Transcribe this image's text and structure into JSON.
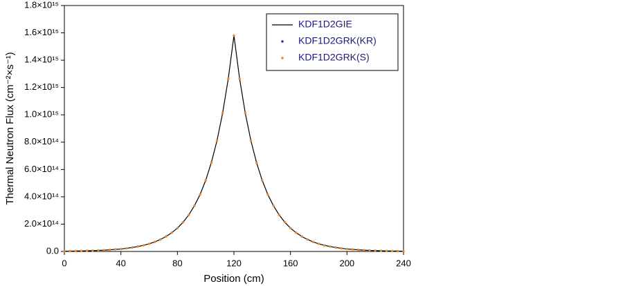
{
  "chart_data": {
    "type": "line",
    "xlabel": "Position (cm)",
    "ylabel": "Thermal Neutron Flux (cm⁻²×s⁻¹)",
    "xlim": [
      0,
      240
    ],
    "ylim": [
      0,
      1800000000000000.0
    ],
    "xticks": [
      0,
      40,
      80,
      120,
      160,
      200,
      240
    ],
    "yticks": [
      {
        "value": 0,
        "label": "0.0"
      },
      {
        "value": 200000000000000.0,
        "label": "2.0×10¹⁴"
      },
      {
        "value": 400000000000000.0,
        "label": "4.0×10¹⁴"
      },
      {
        "value": 600000000000000.0,
        "label": "6.0×10¹⁴"
      },
      {
        "value": 800000000000000.0,
        "label": "8.0×10¹⁴"
      },
      {
        "value": 1000000000000000.0,
        "label": "1.0×10¹⁵"
      },
      {
        "value": 1200000000000000.0,
        "label": "1.2×10¹⁵"
      },
      {
        "value": 1400000000000000.0,
        "label": "1.4×10¹⁵"
      },
      {
        "value": 1600000000000000.0,
        "label": "1.6×10¹⁵"
      },
      {
        "value": 1800000000000000.0,
        "label": "1.8×10¹⁵"
      }
    ],
    "legend": "upper right",
    "x": [
      0,
      4,
      8,
      12,
      16,
      20,
      24,
      28,
      32,
      36,
      40,
      44,
      48,
      52,
      56,
      60,
      64,
      68,
      72,
      76,
      80,
      84,
      88,
      92,
      96,
      100,
      104,
      108,
      112,
      116,
      120,
      124,
      128,
      132,
      136,
      140,
      144,
      148,
      152,
      156,
      160,
      164,
      168,
      172,
      176,
      180,
      184,
      188,
      192,
      196,
      200,
      204,
      208,
      212,
      216,
      220,
      224,
      228,
      232,
      236,
      240
    ],
    "series": [
      {
        "name": "KDF1D2GIE",
        "color": "#000000",
        "style": "line",
        "values": [
          2100000000000.0,
          2500000000000.0,
          3200000000000.0,
          4000000000000.0,
          4900000000000.0,
          6200000000000.0,
          7600000000000.0,
          9500000000000.0,
          12000000000000.0,
          15000000000000.0,
          18000000000000.0,
          23000000000000.0,
          29000000000000.0,
          36000000000000.0,
          45000000000000.0,
          56000000000000.0,
          70000000000000.0,
          88000000000000.0,
          110000000000000.0,
          137000000000000.0,
          171000000000000.0,
          214000000000000.0,
          267000000000000.0,
          334000000000000.0,
          416000000000000.0,
          520000000000000.0,
          650000000000000.0,
          811000000000000.0,
          1013000000000000.0,
          1265000000000000.0,
          1580000000000000.0,
          1265000000000000.0,
          1013000000000000.0,
          811000000000000.0,
          650000000000000.0,
          520000000000000.0,
          416000000000000.0,
          334000000000000.0,
          267000000000000.0,
          214000000000000.0,
          171000000000000.0,
          137000000000000.0,
          110000000000000.0,
          88000000000000.0,
          70000000000000.0,
          56000000000000.0,
          45000000000000.0,
          36000000000000.0,
          29000000000000.0,
          23000000000000.0,
          18000000000000.0,
          15000000000000.0,
          12000000000000.0,
          9500000000000.0,
          7600000000000.0,
          6200000000000.0,
          4900000000000.0,
          4000000000000.0,
          3200000000000.0,
          2500000000000.0,
          2100000000000.0
        ]
      },
      {
        "name": "KDF1D2GRK(KR)",
        "color": "#1f2fd0",
        "style": "dots",
        "values": [
          2100000000000.0,
          2500000000000.0,
          3200000000000.0,
          4000000000000.0,
          4900000000000.0,
          6200000000000.0,
          7600000000000.0,
          9500000000000.0,
          12000000000000.0,
          15000000000000.0,
          18000000000000.0,
          23000000000000.0,
          29000000000000.0,
          36000000000000.0,
          45000000000000.0,
          56000000000000.0,
          70000000000000.0,
          88000000000000.0,
          110000000000000.0,
          137000000000000.0,
          171000000000000.0,
          214000000000000.0,
          267000000000000.0,
          334000000000000.0,
          416000000000000.0,
          520000000000000.0,
          650000000000000.0,
          811000000000000.0,
          1013000000000000.0,
          1265000000000000.0,
          1580000000000000.0,
          1265000000000000.0,
          1013000000000000.0,
          811000000000000.0,
          650000000000000.0,
          520000000000000.0,
          416000000000000.0,
          334000000000000.0,
          267000000000000.0,
          214000000000000.0,
          171000000000000.0,
          137000000000000.0,
          110000000000000.0,
          88000000000000.0,
          70000000000000.0,
          56000000000000.0,
          45000000000000.0,
          36000000000000.0,
          29000000000000.0,
          23000000000000.0,
          18000000000000.0,
          15000000000000.0,
          12000000000000.0,
          9500000000000.0,
          7600000000000.0,
          6200000000000.0,
          4900000000000.0,
          4000000000000.0,
          3200000000000.0,
          2500000000000.0,
          2100000000000.0
        ]
      },
      {
        "name": "KDF1D2GRK(S)",
        "color": "#f08a1c",
        "style": "dots",
        "values": [
          2100000000000.0,
          2500000000000.0,
          3200000000000.0,
          4000000000000.0,
          4900000000000.0,
          6200000000000.0,
          7600000000000.0,
          9500000000000.0,
          12000000000000.0,
          15000000000000.0,
          18000000000000.0,
          23000000000000.0,
          29000000000000.0,
          36000000000000.0,
          45000000000000.0,
          56000000000000.0,
          70000000000000.0,
          88000000000000.0,
          110000000000000.0,
          137000000000000.0,
          171000000000000.0,
          214000000000000.0,
          267000000000000.0,
          334000000000000.0,
          416000000000000.0,
          520000000000000.0,
          650000000000000.0,
          811000000000000.0,
          1013000000000000.0,
          1265000000000000.0,
          1580000000000000.0,
          1265000000000000.0,
          1013000000000000.0,
          811000000000000.0,
          650000000000000.0,
          520000000000000.0,
          416000000000000.0,
          334000000000000.0,
          267000000000000.0,
          214000000000000.0,
          171000000000000.0,
          137000000000000.0,
          110000000000000.0,
          88000000000000.0,
          70000000000000.0,
          56000000000000.0,
          45000000000000.0,
          36000000000000.0,
          29000000000000.0,
          23000000000000.0,
          18000000000000.0,
          15000000000000.0,
          12000000000000.0,
          9500000000000.0,
          7600000000000.0,
          6200000000000.0,
          4900000000000.0,
          4000000000000.0,
          3200000000000.0,
          2500000000000.0,
          2100000000000.0
        ]
      }
    ]
  }
}
